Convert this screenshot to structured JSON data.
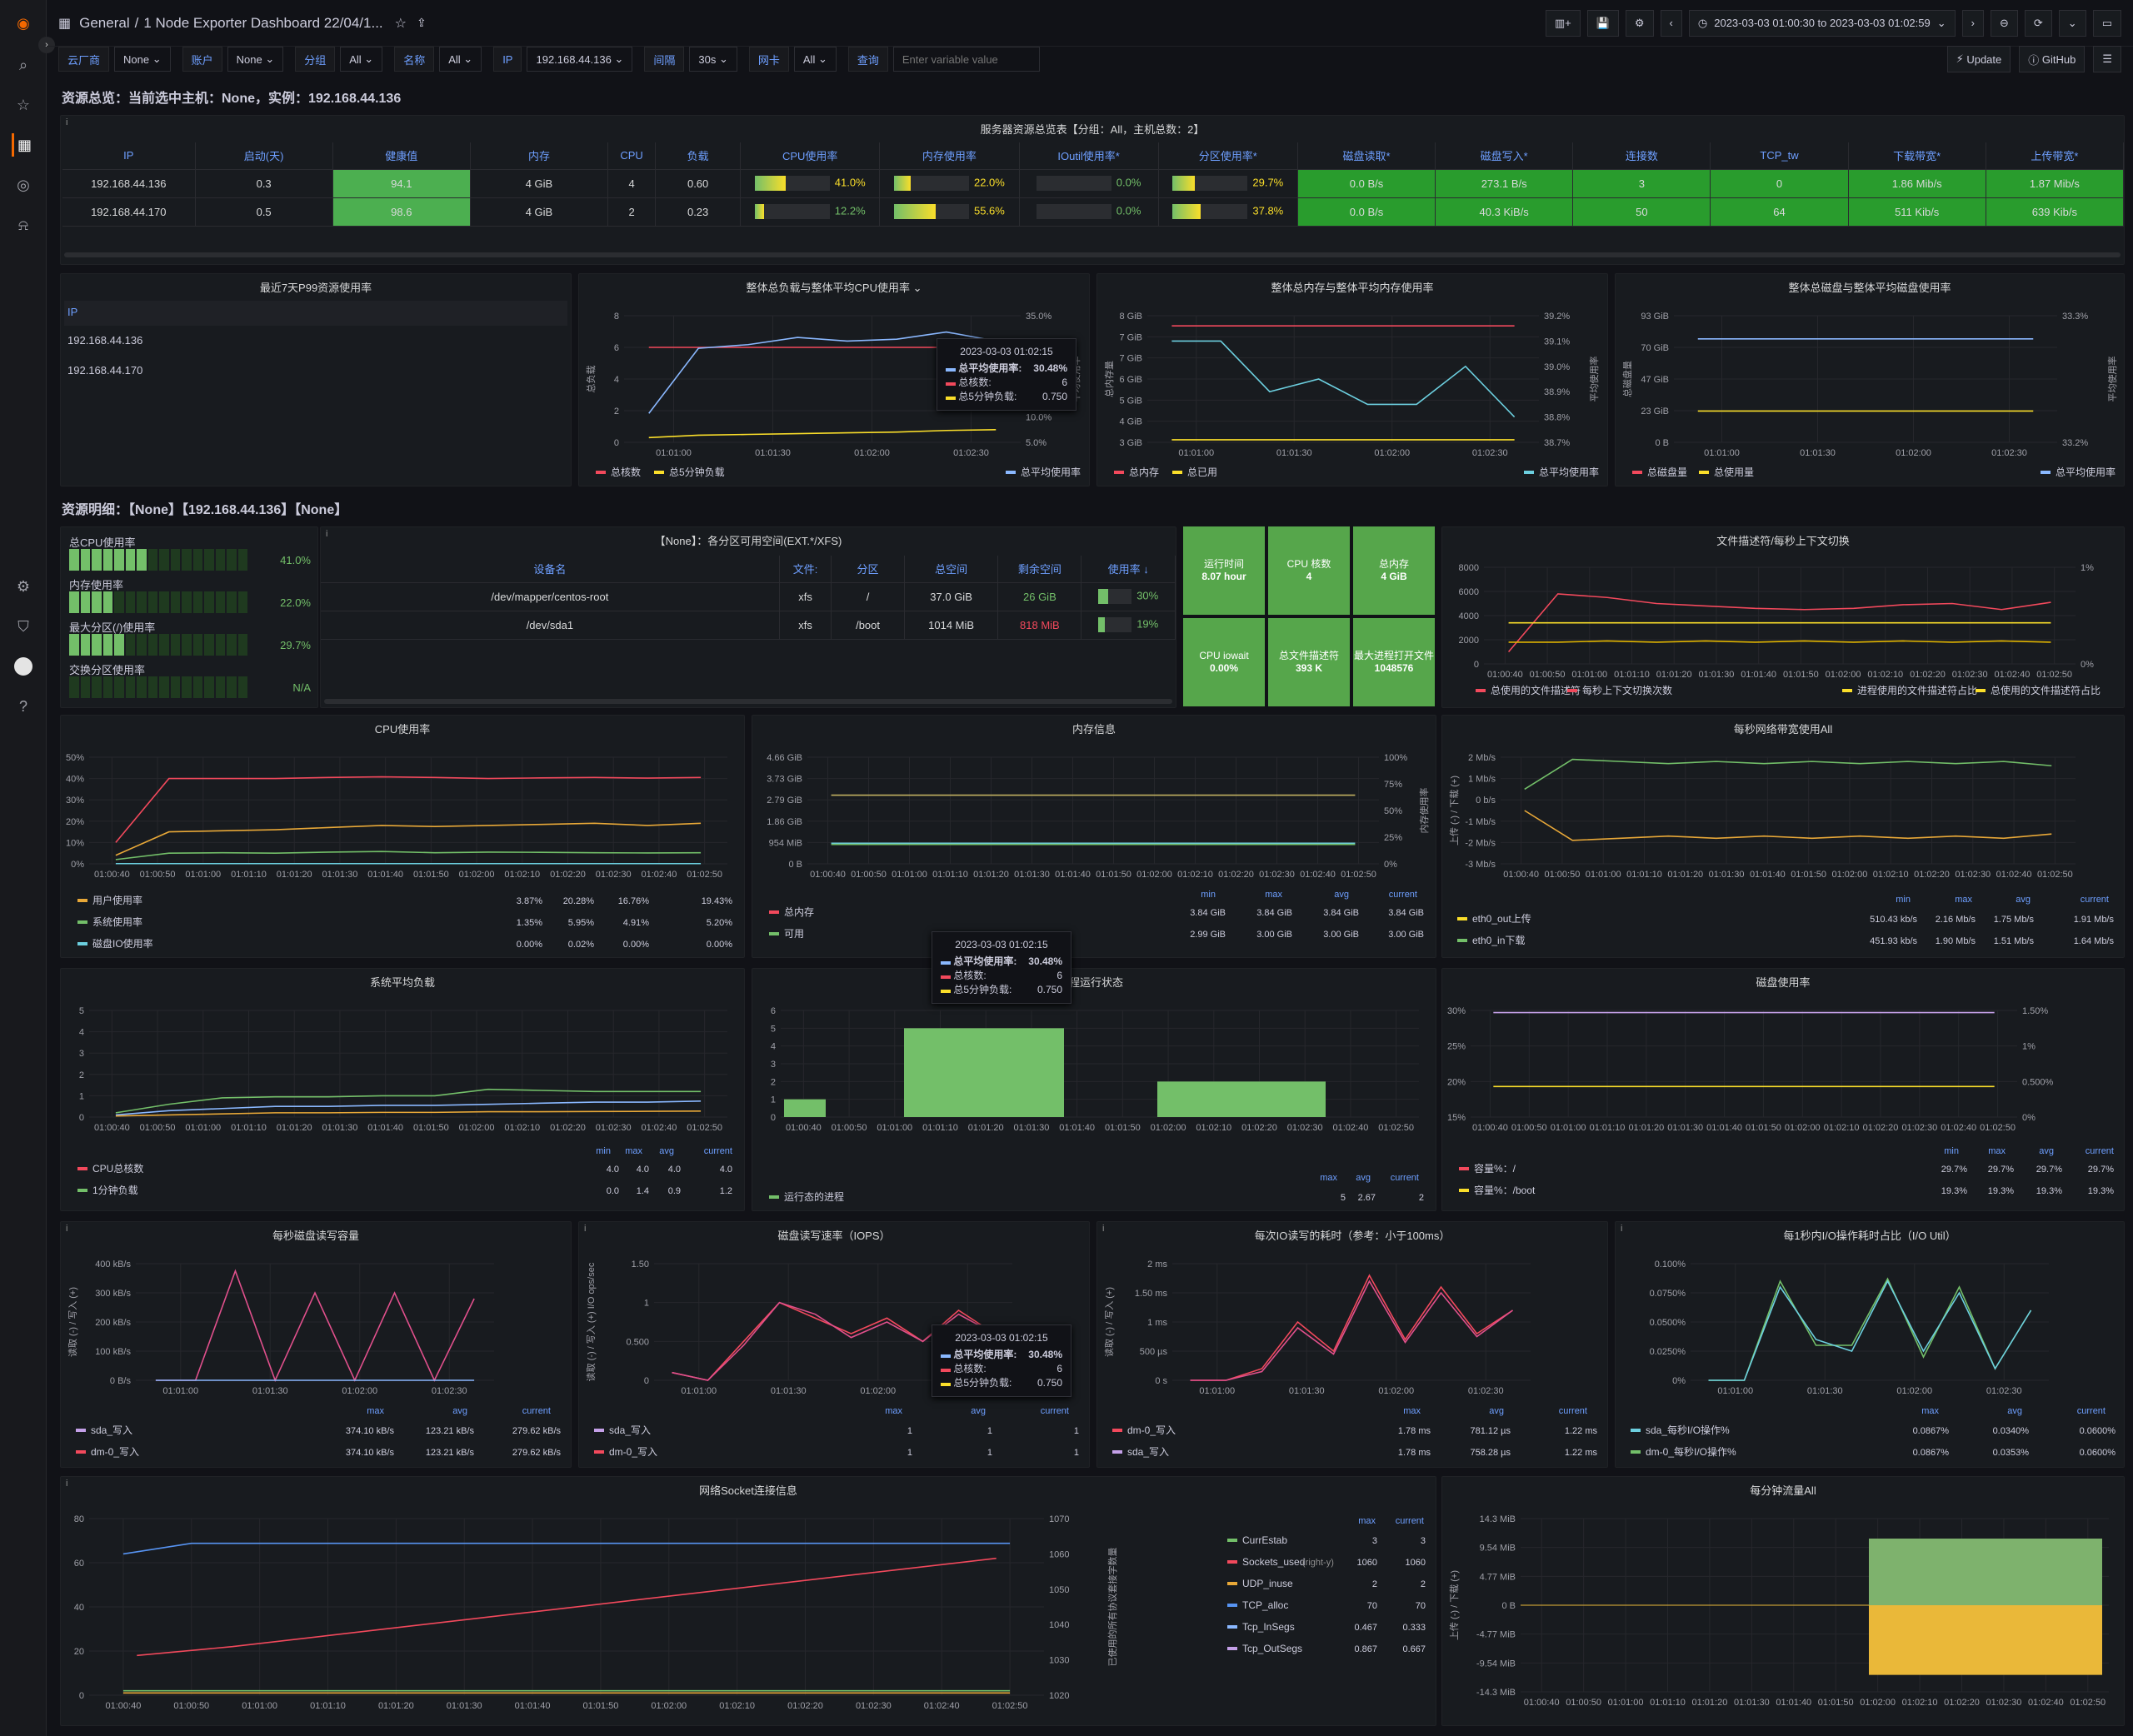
{
  "breadcrumb": {
    "root": "General",
    "sep": "/",
    "title": "1 Node Exporter Dashboard 22/04/1..."
  },
  "time_range": "2023-03-03 01:00:30 to 2023-03-03 01:02:59",
  "vars": [
    {
      "label": "云厂商",
      "value": "None"
    },
    {
      "label": "账户",
      "value": "None"
    },
    {
      "label": "分组",
      "value": "All"
    },
    {
      "label": "名称",
      "value": "All"
    },
    {
      "label": "IP",
      "value": "192.168.44.136"
    },
    {
      "label": "间隔",
      "value": "30s"
    },
    {
      "label": "网卡",
      "value": "All"
    },
    {
      "label": "查询",
      "value": ""
    }
  ],
  "query_placeholder": "Enter variable value",
  "buttons": {
    "update": "Update",
    "github": "GitHub"
  },
  "rows": {
    "overview": "资源总览：当前选中主机：None，实例：192.168.44.136",
    "detail": "资源明细：【None】【192.168.44.136】【None】"
  },
  "server_table": {
    "title": "服务器资源总览表【分组：All，主机总数：2】",
    "headers": [
      "IP",
      "启动(天)",
      "健康值",
      "内存",
      "CPU",
      "负载",
      "CPU使用率",
      "内存使用率",
      "IOutil使用率*",
      "分区使用率*",
      "磁盘读取*",
      "磁盘写入*",
      "连接数",
      "TCP_tw",
      "下载带宽*",
      "上传带宽*"
    ],
    "rows": [
      {
        "ip": "192.168.44.136",
        "uptime": "0.3",
        "health": "94.1",
        "mem": "4 GiB",
        "cpu": "4",
        "load": "0.60",
        "cpu_pct": "41.0%",
        "cpu_v": 0.41,
        "mem_pct": "22.0%",
        "mem_v": 0.22,
        "io_pct": "0.0%",
        "io_v": 0,
        "part_pct": "29.7%",
        "part_v": 0.297,
        "disk_read": "0.0 B/s",
        "disk_write": "273.1 B/s",
        "conn": "3",
        "tcp_tw": "0",
        "down": "1.86 Mib/s",
        "up": "1.87 Mib/s"
      },
      {
        "ip": "192.168.44.170",
        "uptime": "0.5",
        "health": "98.6",
        "mem": "4 GiB",
        "cpu": "2",
        "load": "0.23",
        "cpu_pct": "12.2%",
        "cpu_v": 0.122,
        "mem_pct": "55.6%",
        "mem_v": 0.556,
        "io_pct": "0.0%",
        "io_v": 0,
        "part_pct": "37.8%",
        "part_v": 0.378,
        "disk_read": "0.0 B/s",
        "disk_write": "40.3 KiB/s",
        "conn": "50",
        "tcp_tw": "64",
        "down": "511 Kib/s",
        "up": "639 Kib/s"
      }
    ]
  },
  "p99": {
    "title": "最近7天P99资源使用率",
    "header": "IP",
    "ips": [
      "192.168.44.136",
      "192.168.44.170"
    ]
  },
  "panels": {
    "cpu_load": {
      "title": "整体总负载与整体平均CPU使用率",
      "yl": "总负载",
      "yr": "平均使用率",
      "yticks": [
        "8",
        "6",
        "4",
        "2",
        "0"
      ],
      "rticks": [
        "35.0%",
        "30.0%",
        "25.0%",
        "15.0%",
        "10.0%",
        "5.0%"
      ],
      "xticks": [
        "01:01:00",
        "01:01:30",
        "01:02:00",
        "01:02:30"
      ],
      "legend": [
        "总核数",
        "总5分钟负载",
        "总平均使用率"
      ]
    },
    "mem_total": {
      "title": "整体总内存与整体平均内存使用率",
      "yl": "总内存量",
      "yr": "平均使用率",
      "yticks": [
        "8 GiB",
        "7 GiB",
        "7 GiB",
        "6 GiB",
        "5 GiB",
        "4 GiB",
        "3 GiB"
      ],
      "rticks": [
        "39.2%",
        "39.1%",
        "39.0%",
        "38.9%",
        "38.8%",
        "38.7%"
      ],
      "xticks": [
        "01:01:00",
        "01:01:30",
        "01:02:00",
        "01:02:30"
      ],
      "legend": [
        "总内存",
        "总已用",
        "总平均使用率"
      ]
    },
    "disk_total": {
      "title": "整体总磁盘与整体平均磁盘使用率",
      "yl": "总磁盘量",
      "yr": "平均使用率",
      "yticks": [
        "93 GiB",
        "70 GiB",
        "47 GiB",
        "23 GiB",
        "0 B"
      ],
      "rticks": [
        "33.3%",
        "33.2%"
      ],
      "xticks": [
        "01:01:00",
        "01:01:30",
        "01:02:00",
        "01:02:30"
      ],
      "legend": [
        "总磁盘量",
        "总使用量",
        "总平均使用率"
      ]
    },
    "gauges": {
      "items": [
        {
          "label": "总CPU使用率",
          "value": "41.0%",
          "on": 7
        },
        {
          "label": "内存使用率",
          "value": "22.0%",
          "on": 4
        },
        {
          "label": "最大分区(/)使用率",
          "value": "29.7%",
          "on": 5
        },
        {
          "label": "交换分区使用率",
          "value": "N/A",
          "on": 0
        }
      ]
    },
    "partitions": {
      "title": "【None】：各分区可用空间(EXT.*/XFS)",
      "headers": [
        "设备名",
        "文件:",
        "分区",
        "总空间",
        "剩余空间",
        "使用率"
      ],
      "rows": [
        {
          "dev": "/dev/mapper/centos-root",
          "fs": "xfs",
          "mount": "/",
          "total": "37.0 GiB",
          "free": "26 GiB",
          "pct": "30%",
          "v": 0.3
        },
        {
          "dev": "/dev/sda1",
          "fs": "xfs",
          "mount": "/boot",
          "total": "1014 MiB",
          "free": "818 MiB",
          "pct": "19%",
          "v": 0.19
        }
      ]
    },
    "stats": [
      {
        "t": "运行时间",
        "v": "8.07 hour"
      },
      {
        "t": "CPU 核数",
        "v": "4"
      },
      {
        "t": "总内存",
        "v": "4 GiB"
      },
      {
        "t": "CPU iowait",
        "v": "0.00%"
      },
      {
        "t": "总文件描述符",
        "v": "393 K"
      },
      {
        "t": "最大进程打开文件",
        "v": "1048576"
      }
    ],
    "fd": {
      "title": "文件描述符/每秒上下文切换",
      "yticks": [
        "8000",
        "6000",
        "4000",
        "2000",
        "0"
      ],
      "rticks": [
        "1%",
        "0%"
      ],
      "legend": [
        "总使用的文件描述符",
        "每秒上下文切换次数",
        "进程使用的文件描述符占比",
        "总使用的文件描述符占比"
      ]
    },
    "cpu": {
      "title": "CPU使用率",
      "yticks": [
        "50%",
        "40%",
        "30%",
        "20%",
        "10%",
        "0%"
      ],
      "legend": [
        {
          "n": "用户使用率",
          "v": [
            "3.87%",
            "20.28%",
            "16.76%",
            "19.43%"
          ]
        },
        {
          "n": "系统使用率",
          "v": [
            "1.35%",
            "5.95%",
            "4.91%",
            "5.20%"
          ]
        },
        {
          "n": "磁盘IO使用率",
          "v": [
            "0.00%",
            "0.02%",
            "0.00%",
            "0.00%"
          ]
        }
      ]
    },
    "mem": {
      "title": "内存信息",
      "yticks": [
        "4.66 GiB",
        "3.73 GiB",
        "2.79 GiB",
        "1.86 GiB",
        "954 MiB",
        "0 B"
      ],
      "rticks": [
        "100%",
        "75%",
        "50%",
        "25%",
        "0%"
      ],
      "yr": "内存使用率",
      "cols": [
        "min",
        "max",
        "avg",
        "current"
      ],
      "legend": [
        {
          "n": "总内存",
          "v": [
            "3.84 GiB",
            "3.84 GiB",
            "3.84 GiB",
            "3.84 GiB"
          ]
        },
        {
          "n": "可用",
          "v": [
            "2.99 GiB",
            "3.00 GiB",
            "3.00 GiB",
            "3.00 GiB"
          ]
        }
      ]
    },
    "net": {
      "title": "每秒网络带宽使用All",
      "yticks": [
        "2 Mb/s",
        "1 Mb/s",
        "0 b/s",
        "-1 Mb/s",
        "-2 Mb/s",
        "-3 Mb/s"
      ],
      "yl": "上传 (-) / 下载 (+)",
      "cols": [
        "min",
        "max",
        "avg",
        "current"
      ],
      "legend": [
        {
          "n": "eth0_out上传",
          "v": [
            "510.43 kb/s",
            "2.16 Mb/s",
            "1.75 Mb/s",
            "1.91 Mb/s"
          ]
        },
        {
          "n": "eth0_in下载",
          "v": [
            "451.93 kb/s",
            "1.90 Mb/s",
            "1.51 Mb/s",
            "1.64 Mb/s"
          ]
        }
      ]
    },
    "sysload": {
      "title": "系统平均负载",
      "yticks": [
        "5",
        "4",
        "3",
        "2",
        "1",
        "0"
      ],
      "cols": [
        "min",
        "max",
        "avg",
        "current"
      ],
      "legend": [
        {
          "n": "CPU总核数",
          "v": [
            "4.0",
            "4.0",
            "4.0",
            "4.0"
          ]
        },
        {
          "n": "1分钟负载",
          "v": [
            "0.0",
            "1.4",
            "0.9",
            "1.2"
          ]
        }
      ]
    },
    "proc": {
      "title": "程运行状态",
      "yticks": [
        "6",
        "5",
        "4",
        "3",
        "2",
        "1",
        "0"
      ],
      "cols": [
        "max",
        "avg",
        "current"
      ],
      "legend": [
        {
          "n": "运行态的进程",
          "v": [
            "5",
            "2.67",
            "2"
          ]
        }
      ]
    },
    "diskuse": {
      "title": "磁盘使用率",
      "yticks": [
        "30%",
        "25%",
        "20%",
        "15%"
      ],
      "rticks": [
        "1.50%",
        "1%",
        "0.500%",
        "0%"
      ],
      "cols": [
        "min",
        "max",
        "avg",
        "current"
      ],
      "legend": [
        {
          "n": "容量%：/",
          "v": [
            "29.7%",
            "29.7%",
            "29.7%",
            "29.7%"
          ]
        },
        {
          "n": "容量%：/boot",
          "v": [
            "19.3%",
            "19.3%",
            "19.3%",
            "19.3%"
          ]
        }
      ]
    },
    "diskrw": {
      "title": "每秒磁盘读写容量",
      "yl": "读取 (-) / 写入 (+)",
      "yticks": [
        "400 kB/s",
        "300 kB/s",
        "200 kB/s",
        "100 kB/s",
        "0 B/s"
      ],
      "cols": [
        "max",
        "avg",
        "current"
      ],
      "legend": [
        {
          "n": "sda_写入",
          "v": [
            "374.10 kB/s",
            "123.21 kB/s",
            "279.62 kB/s"
          ]
        },
        {
          "n": "dm-0_写入",
          "v": [
            "374.10 kB/s",
            "123.21 kB/s",
            "279.62 kB/s"
          ]
        }
      ]
    },
    "iops": {
      "title": "磁盘读写速率（IOPS）",
      "yl": "读取 (-) / 写入 (+) I/O ops/sec",
      "yticks": [
        "1.50",
        "1",
        "0.500",
        "0"
      ],
      "cols": [
        "max",
        "avg",
        "current"
      ],
      "legend": [
        {
          "n": "sda_写入",
          "v": [
            "1",
            "1",
            "1"
          ]
        },
        {
          "n": "dm-0_写入",
          "v": [
            "1",
            "1",
            "1"
          ]
        }
      ]
    },
    "iotime": {
      "title": "每次IO读写的耗时（参考：小于100ms）",
      "yl": "读取 (-) / 写入 (+)",
      "yticks": [
        "2 ms",
        "1.50 ms",
        "1 ms",
        "500 µs",
        "0 s"
      ],
      "cols": [
        "max",
        "avg",
        "current"
      ],
      "legend": [
        {
          "n": "dm-0_写入",
          "v": [
            "1.78 ms",
            "781.12 µs",
            "1.22 ms"
          ]
        },
        {
          "n": "sda_写入",
          "v": [
            "1.78 ms",
            "758.28 µs",
            "1.22 ms"
          ]
        }
      ]
    },
    "ioutil": {
      "title": "每1秒内I/O操作耗时占比（I/O Util）",
      "yticks": [
        "0.100%",
        "0.0750%",
        "0.0500%",
        "0.0250%",
        "0%"
      ],
      "cols": [
        "max",
        "avg",
        "current"
      ],
      "legend": [
        {
          "n": "sda_每秒I/O操作%",
          "v": [
            "0.0867%",
            "0.0340%",
            "0.0600%"
          ]
        },
        {
          "n": "dm-0_每秒I/O操作%",
          "v": [
            "0.0867%",
            "0.0353%",
            "0.0600%"
          ]
        }
      ]
    },
    "socket": {
      "title": "网络Socket连接信息",
      "yticks": [
        "80",
        "60",
        "40",
        "20",
        "0"
      ],
      "rticks": [
        "1070",
        "1060",
        "1050",
        "1040",
        "1030",
        "1020"
      ],
      "yr": "已使用的所有协议套接字数量",
      "cols": [
        "max",
        "current"
      ],
      "legend": [
        {
          "n": "CurrEstab",
          "v": [
            "3",
            "3"
          ]
        },
        {
          "n": "Sockets_used",
          "tag": "(right-y)",
          "v": [
            "1060",
            "1060"
          ]
        },
        {
          "n": "UDP_inuse",
          "v": [
            "2",
            "2"
          ]
        },
        {
          "n": "TCP_alloc",
          "v": [
            "70",
            "70"
          ]
        },
        {
          "n": "Tcp_InSegs",
          "v": [
            "0.467",
            "0.333"
          ]
        },
        {
          "n": "Tcp_OutSegs",
          "v": [
            "0.867",
            "0.667"
          ]
        }
      ]
    },
    "flow": {
      "title": "每分钟流量All",
      "yl": "上传 (-) / 下载 (+)",
      "yticks": [
        "14.3 MiB",
        "9.54 MiB",
        "4.77 MiB",
        "0 B",
        "-4.77 MiB",
        "-9.54 MiB",
        "-14.3 MiB"
      ]
    }
  },
  "ticks_10s": [
    "01:00:40",
    "01:00:50",
    "01:01:00",
    "01:01:10",
    "01:01:20",
    "01:01:30",
    "01:01:40",
    "01:01:50",
    "01:02:00",
    "01:02:10",
    "01:02:20",
    "01:02:30",
    "01:02:40",
    "01:02:50"
  ],
  "ticks_30s": [
    "01:01:00",
    "01:01:30",
    "01:02:00",
    "01:02:30"
  ],
  "tooltip": {
    "time": "2023-03-03 01:02:15",
    "rows": [
      {
        "n": "总平均使用率:",
        "v": "30.48%"
      },
      {
        "n": "总核数:",
        "v": "6"
      },
      {
        "n": "总5分钟负载:",
        "v": "0.750"
      }
    ]
  },
  "chart_data": [
    {
      "type": "line",
      "title": "整体总负载与整体平均CPU使用率",
      "x": [
        "01:00:45",
        "01:01:00",
        "01:01:15",
        "01:01:30",
        "01:01:45",
        "01:02:00",
        "01:02:15",
        "01:02:30"
      ],
      "series": [
        {
          "name": "总核数",
          "values": [
            6,
            6,
            6,
            6,
            6,
            6,
            6,
            6
          ]
        },
        {
          "name": "总5分钟负载",
          "values": [
            0.3,
            0.45,
            0.5,
            0.55,
            0.6,
            0.65,
            0.75,
            0.8
          ]
        },
        {
          "name": "总平均使用率",
          "values": [
            8,
            26,
            27,
            29,
            28,
            28.5,
            30.5,
            28
          ]
        }
      ]
    },
    {
      "type": "bar",
      "title": "程运行状态",
      "categories": [
        "01:00:40",
        "01:01:00",
        "01:02:00"
      ],
      "series": [
        {
          "name": "运行态的进程",
          "values": [
            1,
            5,
            2
          ]
        }
      ]
    }
  ]
}
